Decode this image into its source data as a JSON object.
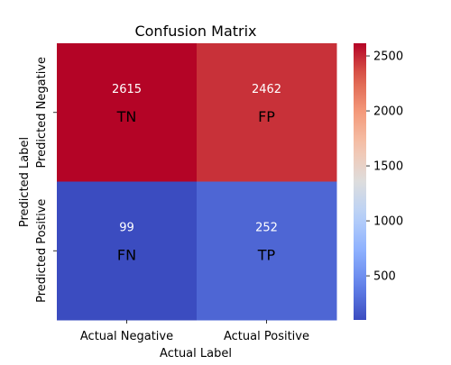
{
  "chart_data": {
    "type": "heatmap",
    "title": "Confusion Matrix",
    "xlabel": "Actual Label",
    "ylabel": "Predicted Label",
    "x_categories": [
      "Actual Negative",
      "Actual Positive"
    ],
    "y_categories": [
      "Predicted Negative",
      "Predicted Positive"
    ],
    "values": [
      [
        2615,
        2462
      ],
      [
        99,
        252
      ]
    ],
    "cell_labels": [
      [
        "TN",
        "FP"
      ],
      [
        "FN",
        "TP"
      ]
    ],
    "colormap": "coolwarm",
    "vmin": 99,
    "vmax": 2615,
    "colorbar_ticks": [
      500,
      1000,
      1500,
      2000,
      2500
    ]
  }
}
